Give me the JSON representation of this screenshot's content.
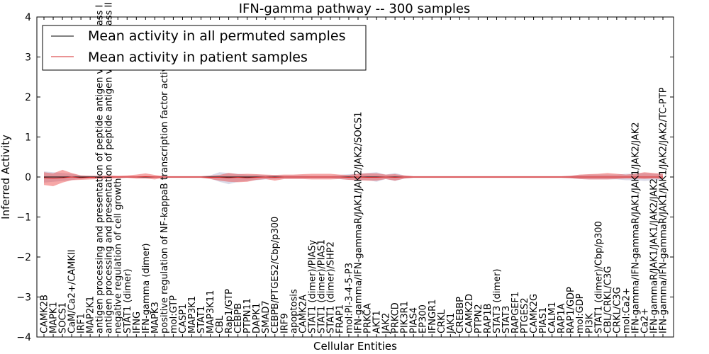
{
  "chart_data": {
    "type": "line",
    "title": "IFN-gamma pathway -- 300 samples",
    "xlabel": "Cellular Entities",
    "ylabel": "Inferred Activity",
    "ylim": [
      -4,
      4
    ],
    "yticks": [
      "−4",
      "−3",
      "−2",
      "−1",
      "0",
      "1",
      "2",
      "3",
      "4"
    ],
    "categories": [
      "CAMK2B",
      "MAPK1",
      "SOCS1",
      "CaM/Ca2+/CAMKII",
      "IRF1",
      "MAP2K1",
      "antigen processing and presentation of peptide antigen via MHC class I",
      "antigen processing and presentation of peptide antigen via MHC class II",
      "negative regulation of cell growth",
      "STAT1 (dimer)",
      "IFNG",
      "IFN-gamma (dimer)",
      "MAPK3",
      "positive regulation of NF-kappaB transcription factor activity",
      "mol:GTP",
      "CASP1",
      "MAP3K1",
      "STAT1",
      "MAP3K11",
      "CBL",
      "Rap1/GTP",
      "CEBPB",
      "PTPN11",
      "DAPK1",
      "SMAD7",
      "CEBPB/PTGES2/Cbp/p300",
      "IRF9",
      "apoptosis",
      "CAMK2A",
      "STAT1 (dimer)/PIASy",
      "STAT1 (dimer)/PIAS1",
      "STAT1 (dimer)/SHP2",
      "FRAP1",
      "mol:PI-3-4-5-P3",
      "IFN-gamma/IFN-gammaR/JAK1/JAK2/JAK2/SOCS1",
      "PRKCA",
      "AKT1",
      "JAK2",
      "PRKCD",
      "PIK3R1",
      "PIAS4",
      "EP300",
      "IFNGR1",
      "CRKL",
      "JAK1",
      "CREBBP",
      "CAMK2D",
      "PTPN2",
      "RAP1B",
      "STAT3 (dimer)",
      "STAT3",
      "RAPGEF1",
      "PTGES2",
      "CAMK2G",
      "PIAS1",
      "CALM1",
      "RAP1A",
      "RAP1/GDP",
      "mol:GDP",
      "PI3K",
      "STAT1 (dimer)/Cbp/p300",
      "CBL/CRKL/C3G",
      "CRKL/C3G",
      "mol:Ca2+",
      "IFN-gamma/IFN-gammaR/JAK1/JAK1/JAK2/JAK2",
      "Ca2+",
      "IFN-gammaR/JAK1/JAK1/JAK2/JAK2",
      "IFN-gamma/IFN-gammaR/JAK1/JAK1/JAK2/JAK2/TC-PTP"
    ],
    "series": [
      {
        "name": "Mean activity in all permuted samples",
        "color": "#000000",
        "values": [
          0,
          0,
          0,
          0,
          0,
          0,
          0,
          0,
          0,
          0,
          0,
          0,
          0,
          0,
          0,
          0,
          0,
          0,
          0,
          0,
          0,
          0,
          0,
          0,
          0,
          0,
          0,
          0,
          0,
          0,
          0,
          0,
          0,
          0,
          0,
          0,
          0,
          0,
          0,
          0,
          0,
          0,
          0,
          0,
          0,
          0,
          0,
          0,
          0,
          0,
          0,
          0,
          0,
          0,
          0,
          0,
          0,
          0,
          0,
          0,
          0,
          0,
          0,
          0,
          0,
          0,
          0,
          0
        ],
        "band_low": [
          -0.14,
          -0.12,
          -0.1,
          -0.08,
          -0.04,
          -0.03,
          -0.03,
          -0.03,
          -0.02,
          -0.02,
          -0.02,
          -0.02,
          -0.02,
          -0.02,
          -0.02,
          -0.02,
          -0.02,
          -0.02,
          -0.04,
          -0.12,
          -0.18,
          -0.12,
          -0.1,
          -0.08,
          -0.06,
          -0.05,
          -0.04,
          -0.04,
          -0.04,
          -0.03,
          -0.03,
          -0.03,
          -0.05,
          -0.07,
          -0.08,
          -0.08,
          -0.12,
          -0.05,
          -0.1,
          -0.04,
          -0.02,
          -0.02,
          -0.02,
          -0.02,
          -0.02,
          -0.02,
          -0.02,
          -0.02,
          -0.02,
          -0.02,
          -0.02,
          -0.02,
          -0.02,
          -0.02,
          -0.02,
          -0.02,
          -0.02,
          -0.03,
          -0.05,
          -0.06,
          -0.06,
          -0.06,
          -0.06,
          -0.08,
          -0.08,
          -0.1,
          -0.08,
          -0.08
        ],
        "band_high": [
          0.14,
          0.12,
          0.1,
          0.08,
          0.04,
          0.03,
          0.03,
          0.03,
          0.02,
          0.02,
          0.02,
          0.02,
          0.02,
          0.02,
          0.02,
          0.02,
          0.02,
          0.02,
          0.04,
          0.12,
          0.1,
          0.08,
          0.06,
          0.06,
          0.05,
          0.05,
          0.04,
          0.04,
          0.04,
          0.03,
          0.03,
          0.03,
          0.05,
          0.07,
          0.08,
          0.1,
          0.12,
          0.06,
          0.1,
          0.04,
          0.02,
          0.02,
          0.02,
          0.02,
          0.02,
          0.02,
          0.02,
          0.02,
          0.02,
          0.02,
          0.02,
          0.02,
          0.02,
          0.02,
          0.02,
          0.02,
          0.02,
          0.03,
          0.05,
          0.06,
          0.06,
          0.06,
          0.06,
          0.08,
          0.08,
          0.1,
          0.08,
          0.08
        ]
      },
      {
        "name": "Mean activity in patient samples",
        "color": "#d62728",
        "values": [
          -0.02,
          -0.03,
          -0.02,
          0,
          -0.02,
          -0.01,
          -0.01,
          0,
          0,
          0,
          0,
          0.01,
          0,
          0,
          0,
          0,
          0,
          0,
          -0.01,
          -0.01,
          -0.02,
          -0.01,
          -0.02,
          -0.01,
          0,
          -0.01,
          0,
          0,
          0,
          0,
          0,
          0,
          0,
          -0.01,
          0,
          -0.01,
          -0.01,
          0,
          -0.01,
          0,
          0,
          0,
          0,
          0,
          0,
          0,
          0,
          0,
          0,
          0,
          0,
          0,
          0,
          0,
          0,
          0,
          0,
          0,
          0,
          0,
          0,
          0,
          0,
          0,
          0,
          0,
          0,
          0
        ],
        "band_low": [
          -0.18,
          -0.2,
          -0.12,
          -0.08,
          -0.05,
          -0.05,
          -0.04,
          -0.04,
          -0.03,
          -0.02,
          -0.04,
          -0.05,
          -0.06,
          -0.02,
          -0.02,
          -0.02,
          -0.02,
          -0.02,
          -0.04,
          -0.08,
          -0.1,
          -0.12,
          -0.1,
          -0.06,
          -0.05,
          -0.08,
          -0.05,
          -0.05,
          -0.05,
          -0.06,
          -0.06,
          -0.06,
          -0.05,
          -0.06,
          -0.08,
          -0.08,
          -0.08,
          -0.05,
          -0.08,
          -0.04,
          -0.02,
          -0.02,
          -0.02,
          -0.02,
          -0.02,
          -0.02,
          -0.02,
          -0.02,
          -0.02,
          -0.02,
          -0.02,
          -0.02,
          -0.02,
          -0.02,
          -0.02,
          -0.02,
          -0.02,
          -0.03,
          -0.05,
          -0.06,
          -0.06,
          -0.06,
          -0.05,
          -0.04,
          -0.04,
          -0.05,
          -0.04,
          -0.05
        ],
        "band_high": [
          0.14,
          0.12,
          0.2,
          0.1,
          0.06,
          0.04,
          0.04,
          0.04,
          0.03,
          0.04,
          0.06,
          0.08,
          0.05,
          0.02,
          0.02,
          0.02,
          0.02,
          0.02,
          0.04,
          0.06,
          0.12,
          0.08,
          0.1,
          0.08,
          0.06,
          0.06,
          0.06,
          0.06,
          0.07,
          0.08,
          0.08,
          0.08,
          0.06,
          0.06,
          0.08,
          0.1,
          0.1,
          0.06,
          0.08,
          0.04,
          0.02,
          0.02,
          0.02,
          0.02,
          0.02,
          0.02,
          0.02,
          0.02,
          0.02,
          0.02,
          0.02,
          0.02,
          0.02,
          0.02,
          0.02,
          0.02,
          0.02,
          0.03,
          0.06,
          0.07,
          0.08,
          0.1,
          0.08,
          0.06,
          0.08,
          0.12,
          0.1,
          0.08
        ]
      }
    ],
    "legend": "upper-left"
  }
}
